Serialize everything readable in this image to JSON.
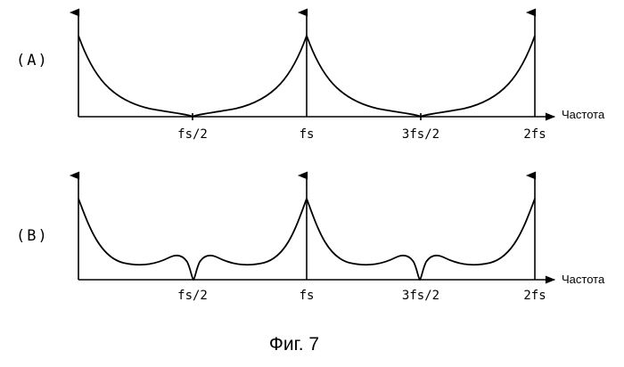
{
  "caption": "Фиг. 7",
  "panels": [
    {
      "label": "(A)",
      "axis_title": "Частота",
      "ticks": [
        "fs/2",
        "fs",
        "3fs/2",
        "2fs"
      ]
    },
    {
      "label": "(B)",
      "axis_title": "Частота",
      "ticks": [
        "fs/2",
        "fs",
        "3fs/2",
        "2fs"
      ]
    }
  ]
}
